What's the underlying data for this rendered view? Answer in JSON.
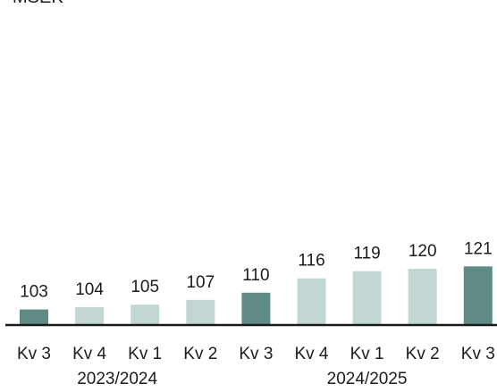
{
  "chart_data": {
    "type": "bar",
    "ylabel": "MSEK",
    "categories": [
      "Kv 3",
      "Kv 4",
      "Kv 1",
      "Kv 2",
      "Kv 3",
      "Kv 4",
      "Kv 1",
      "Kv 2",
      "Kv 3"
    ],
    "values": [
      103,
      104,
      105,
      107,
      110,
      116,
      119,
      120,
      121
    ],
    "highlighted": [
      true,
      false,
      false,
      false,
      true,
      false,
      false,
      false,
      true
    ],
    "groups": [
      {
        "label": "2023/2024",
        "from": 0,
        "to": 3
      },
      {
        "label": "2024/2025",
        "from": 4,
        "to": 8
      }
    ],
    "ylim": [
      0,
      124
    ],
    "grid": false,
    "colors": {
      "highlight": "#5f8b84",
      "normal": "#c2d6d3",
      "axis": "#1a1a1a",
      "text": "#1c1c1c"
    }
  }
}
